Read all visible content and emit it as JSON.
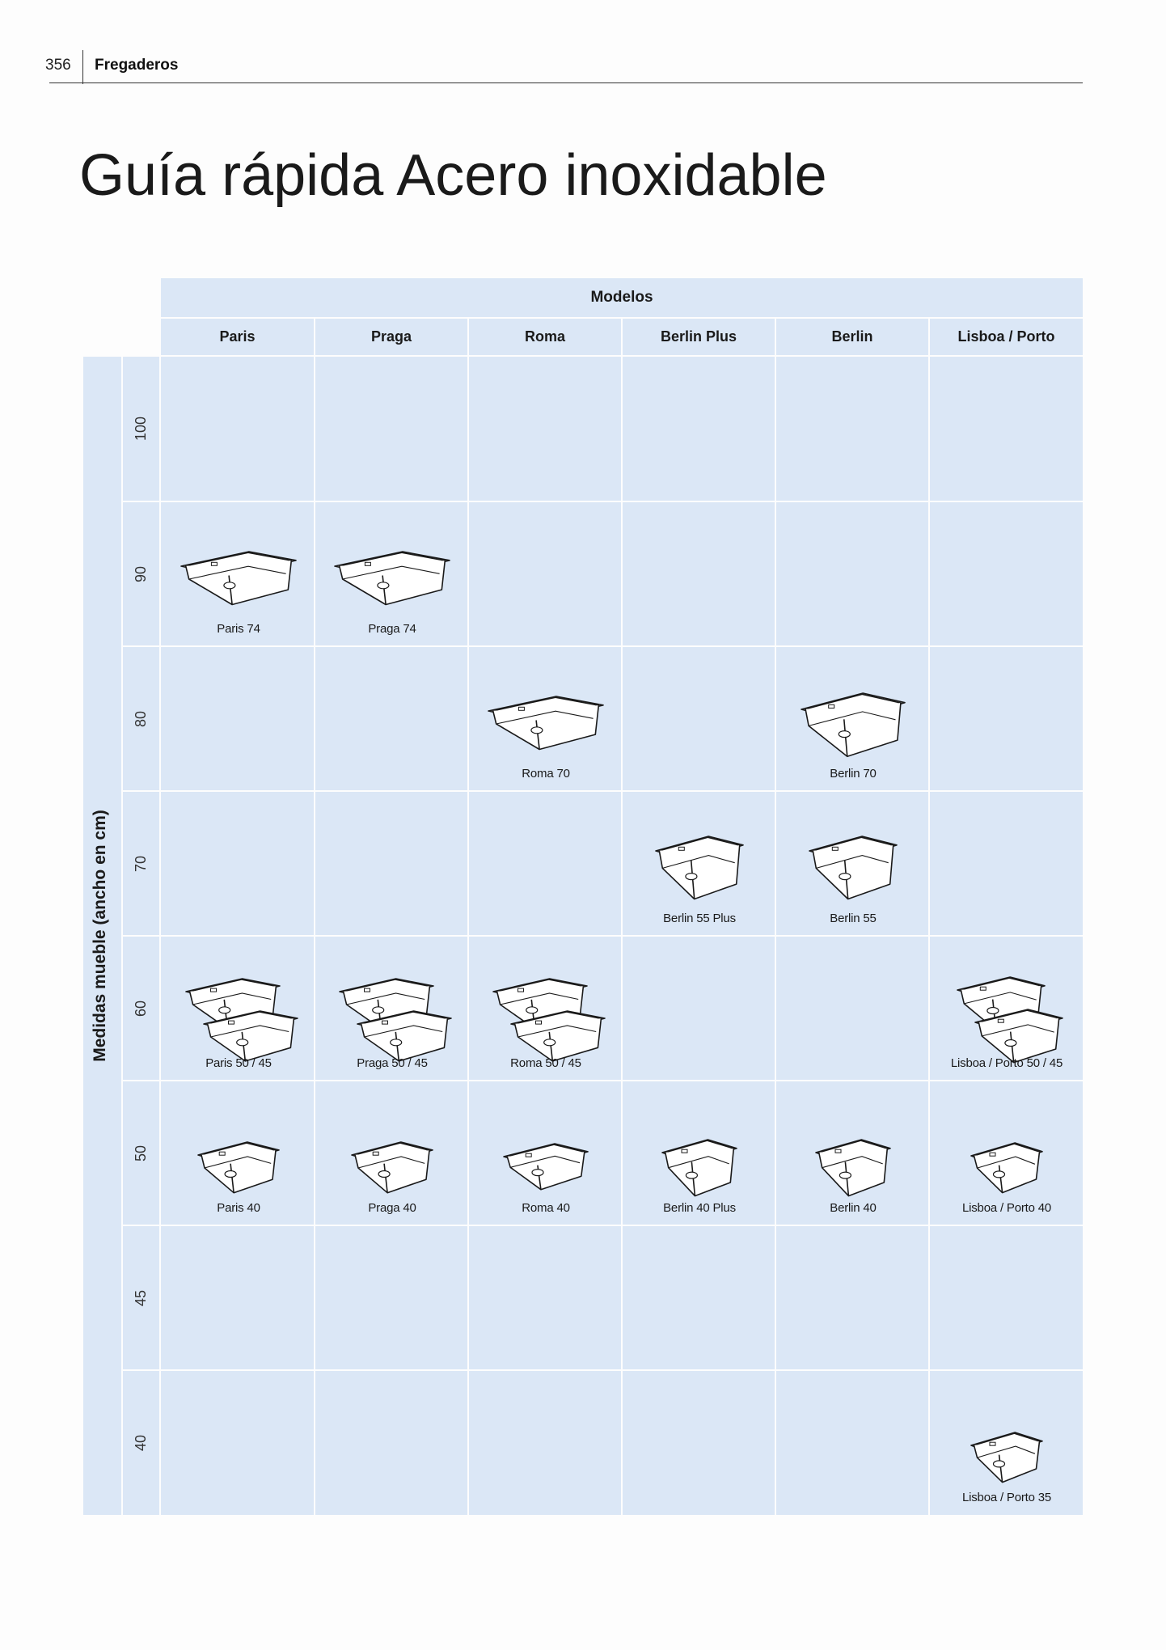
{
  "header": {
    "page_number": "356",
    "section": "Fregaderos"
  },
  "title": "Guía rápida Acero inoxidable",
  "table": {
    "models_heading": "Modelos",
    "row_axis_label": "Medidas mueble (ancho en cm)",
    "columns": [
      "Paris",
      "Praga",
      "Roma",
      "Berlin Plus",
      "Berlin",
      "Lisboa / Porto"
    ],
    "rows": [
      "100",
      "90",
      "80",
      "70",
      "60",
      "50",
      "45",
      "40"
    ],
    "items": [
      {
        "col": 0,
        "row": 1,
        "label": "Paris 74",
        "variant": "wide-flat",
        "count": 1
      },
      {
        "col": 1,
        "row": 1,
        "label": "Praga 74",
        "variant": "wide-flat",
        "count": 1
      },
      {
        "col": 2,
        "row": 2,
        "label": "Roma 70",
        "variant": "wide-flat",
        "count": 1
      },
      {
        "col": 4,
        "row": 2,
        "label": "Berlin 70",
        "variant": "wide-deep",
        "count": 1
      },
      {
        "col": 3,
        "row": 3,
        "label": "Berlin 55 Plus",
        "variant": "square-deep",
        "count": 1
      },
      {
        "col": 4,
        "row": 3,
        "label": "Berlin 55",
        "variant": "square-deep",
        "count": 1
      },
      {
        "col": 0,
        "row": 4,
        "label": "Paris 50 / 45",
        "variant": "double",
        "count": 2
      },
      {
        "col": 1,
        "row": 4,
        "label": "Praga 50 / 45",
        "variant": "double",
        "count": 2
      },
      {
        "col": 2,
        "row": 4,
        "label": "Roma 50 / 45",
        "variant": "double",
        "count": 2
      },
      {
        "col": 5,
        "row": 4,
        "label": "Lisboa / Porto 50 / 45",
        "variant": "double-rounded",
        "count": 2
      },
      {
        "col": 0,
        "row": 5,
        "label": "Paris 40",
        "variant": "small",
        "count": 1
      },
      {
        "col": 1,
        "row": 5,
        "label": "Praga 40",
        "variant": "small",
        "count": 1
      },
      {
        "col": 2,
        "row": 5,
        "label": "Roma 40",
        "variant": "small-flat",
        "count": 1
      },
      {
        "col": 3,
        "row": 5,
        "label": "Berlin 40 Plus",
        "variant": "small-deep",
        "count": 1
      },
      {
        "col": 4,
        "row": 5,
        "label": "Berlin 40",
        "variant": "small-deep",
        "count": 1
      },
      {
        "col": 5,
        "row": 5,
        "label": "Lisboa / Porto 40",
        "variant": "small-rounded",
        "count": 1
      },
      {
        "col": 5,
        "row": 7,
        "label": "Lisboa / Porto 35",
        "variant": "small-rounded",
        "count": 1
      }
    ]
  },
  "colors": {
    "cell_fill": "#dbe7f6",
    "grid_line": "#ffffff",
    "line_art": "#1a1a1a"
  }
}
